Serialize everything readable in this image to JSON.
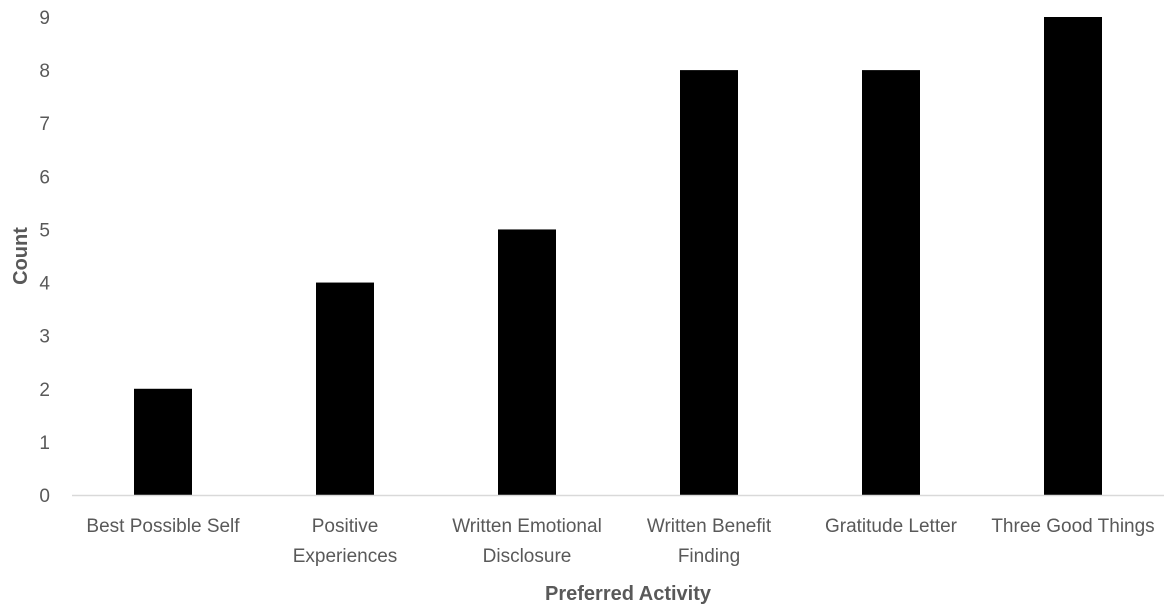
{
  "chart_data": {
    "type": "bar",
    "categories": [
      [
        "Best Possible Self"
      ],
      [
        "Positive",
        "Experiences"
      ],
      [
        "Written Emotional",
        "Disclosure"
      ],
      [
        "Written Benefit",
        "Finding"
      ],
      [
        "Gratitude Letter"
      ],
      [
        "Three Good Things"
      ]
    ],
    "values": [
      2,
      4,
      5,
      8,
      8,
      9
    ],
    "xlabel": "Preferred Activity",
    "ylabel": "Count",
    "ylim": [
      0,
      9
    ],
    "yticks": [
      0,
      1,
      2,
      3,
      4,
      5,
      6,
      7,
      8,
      9
    ],
    "grid": false,
    "legend": "none",
    "bar_color": "#000000",
    "axis_color": "#d9d9d9",
    "text_color": "#595959"
  }
}
